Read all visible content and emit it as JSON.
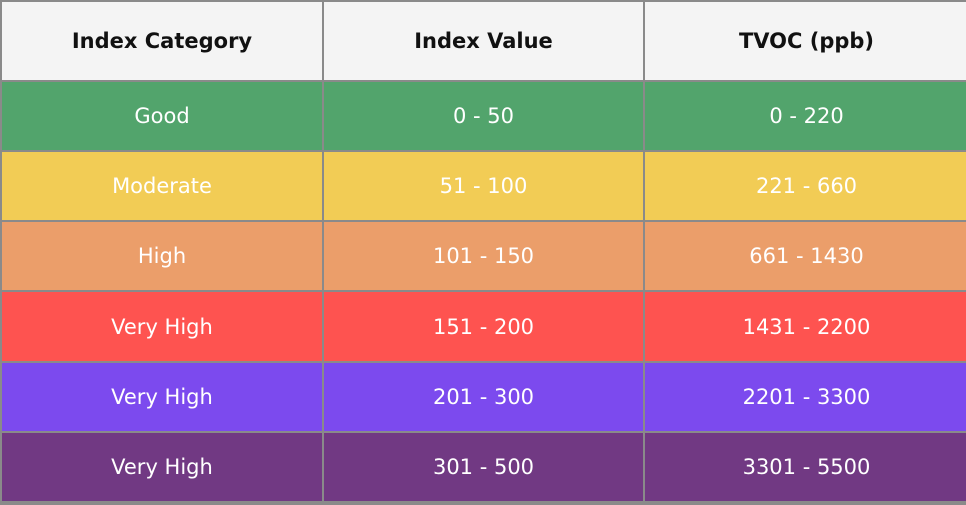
{
  "table": {
    "header": [
      "Index Category",
      "Index Value",
      "TVOC (ppb)"
    ],
    "rows": [
      {
        "color": "#52a46c",
        "cells": [
          "Good",
          "0 - 50",
          "0 - 220"
        ]
      },
      {
        "color": "#f2cc55",
        "cells": [
          "Moderate",
          "51 - 100",
          "221 - 660"
        ]
      },
      {
        "color": "#eb9e6a",
        "cells": [
          "High",
          "101 - 150",
          "661 - 1430"
        ]
      },
      {
        "color": "#fe5350",
        "cells": [
          "Very High",
          "151 - 200",
          "1431 - 2200"
        ]
      },
      {
        "color": "#7c4aee",
        "cells": [
          "Very High",
          "201 - 300",
          "2201 - 3300"
        ]
      },
      {
        "color": "#713983",
        "cells": [
          "Very High",
          "301 - 500",
          "3301 - 5500"
        ]
      }
    ]
  }
}
